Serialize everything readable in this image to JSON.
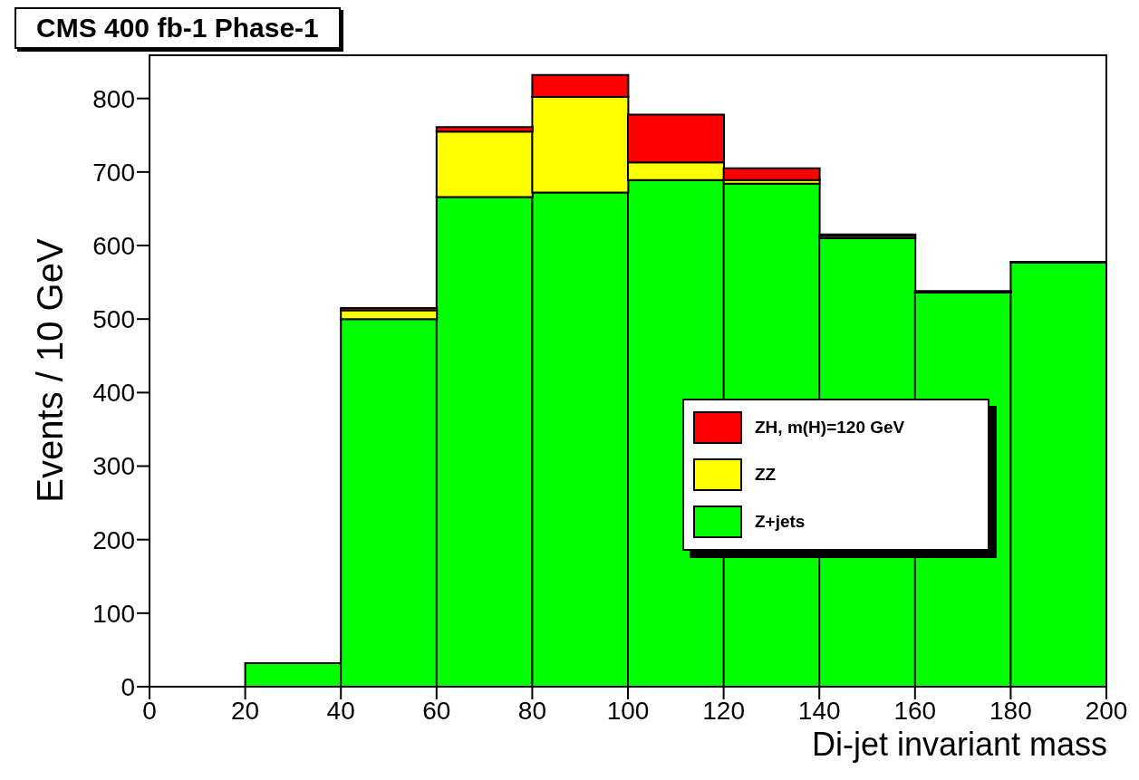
{
  "chart_data": {
    "type": "bar",
    "title": "CMS 400 fb-1 Phase-1",
    "xlabel": "Di-jet invariant mass",
    "ylabel": "Events / 10 GeV",
    "x": [
      10,
      30,
      50,
      70,
      90,
      110,
      130,
      150,
      170,
      190
    ],
    "series": [
      {
        "name": "Z+jets",
        "color": "#00ff00",
        "values": [
          0,
          32,
          500,
          666,
          672,
          689,
          684,
          610,
          536,
          577
        ]
      },
      {
        "name": "ZZ",
        "color": "#ffff00",
        "values": [
          0,
          0,
          12,
          89,
          130,
          24,
          5,
          3,
          1,
          0
        ]
      },
      {
        "name": "ZH, m(H)=120 GeV",
        "color": "#ff0000",
        "values": [
          0,
          0,
          3,
          6,
          30,
          65,
          16,
          2,
          1,
          1
        ]
      }
    ],
    "stacked": true,
    "xlim": [
      0,
      200
    ],
    "xticks": [
      0,
      20,
      40,
      60,
      80,
      100,
      120,
      140,
      160,
      180,
      200
    ],
    "ylim": [
      0,
      860
    ],
    "yticks": [
      0,
      100,
      200,
      300,
      400,
      500,
      600,
      700,
      800
    ],
    "legend": "right"
  }
}
